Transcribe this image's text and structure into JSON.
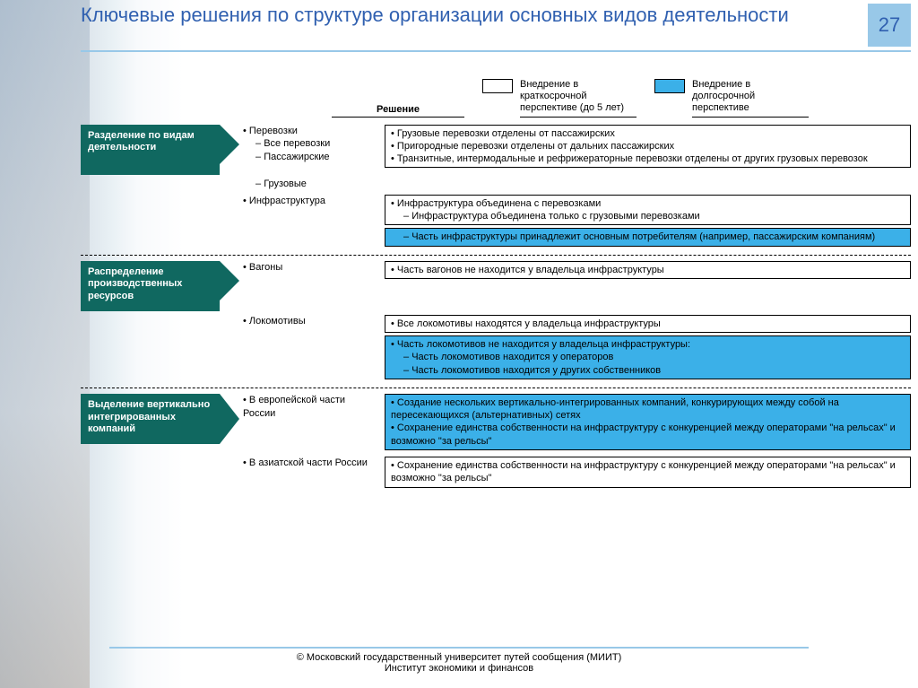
{
  "page_number": "27",
  "title": "Ключевые решения по структуре организации основных видов деятельности",
  "colors": {
    "title": "#3060b0",
    "accent_bar": "#98c8e8",
    "category_bg": "#106860",
    "long_term_bg": "#3bb0e8",
    "short_term_bg": "#ffffff"
  },
  "legend": {
    "solution_header": "Решение",
    "short_term": "Внедрение в краткосрочной перспективе (до 5 лет)",
    "long_term": "Внедрение в долгосрочной перспективе"
  },
  "sections": [
    {
      "category": "Разделение по видам деятельности",
      "groups": [
        {
          "mid": [
            {
              "text": "Перевозки",
              "type": "b"
            },
            {
              "text": "Все перевозки",
              "type": "d"
            },
            {
              "text": "Пассажирские",
              "type": "d"
            },
            {
              "text": "",
              "type": "gap"
            },
            {
              "text": "Грузовые",
              "type": "d"
            }
          ],
          "boxes": [
            {
              "cls": "short",
              "items": [
                {
                  "text": "Грузовые перевозки отделены от пассажирских",
                  "type": "b"
                },
                {
                  "text": "Пригородные перевозки отделены от дальних пассажирских",
                  "type": "b"
                },
                {
                  "text": "Транзитные, интермодальные и рефрижераторные перевозки отделены от других грузовых перевозок",
                  "type": "b"
                }
              ]
            }
          ]
        },
        {
          "mid": [
            {
              "text": "Инфраструктура",
              "type": "b"
            }
          ],
          "boxes": [
            {
              "cls": "short",
              "items": [
                {
                  "text": "Инфраструктура объединена с перевозками",
                  "type": "b"
                },
                {
                  "text": "Инфраструктура объединена только с грузовыми перевозками",
                  "type": "d"
                }
              ]
            },
            {
              "cls": "long",
              "items": [
                {
                  "text": "Часть инфраструктуры принадлежит основным потребителям (например, пассажирским компаниям)",
                  "type": "d"
                }
              ]
            }
          ]
        }
      ]
    },
    {
      "category": "Распределение производственных ресурсов",
      "groups": [
        {
          "mid": [
            {
              "text": "Вагоны",
              "type": "b"
            }
          ],
          "boxes": [
            {
              "cls": "short",
              "items": [
                {
                  "text": "Часть вагонов не находится у владельца инфраструктуры",
                  "type": "b"
                }
              ]
            }
          ]
        },
        {
          "mid": [
            {
              "text": "Локомотивы",
              "type": "b"
            }
          ],
          "boxes": [
            {
              "cls": "short",
              "items": [
                {
                  "text": "Все локомотивы находятся у владельца инфраструктуры",
                  "type": "b"
                }
              ]
            },
            {
              "cls": "long",
              "items": [
                {
                  "text": "Часть локомотивов не находится у владельца инфраструктуры:",
                  "type": "b"
                },
                {
                  "text": "Часть локомотивов находится у операторов",
                  "type": "d"
                },
                {
                  "text": "Часть локомотивов находится у других собственников",
                  "type": "d"
                }
              ]
            }
          ]
        }
      ]
    },
    {
      "category": "Выделение вертикально интегрированных компаний",
      "groups": [
        {
          "mid": [
            {
              "text": "В европейской части России",
              "type": "b"
            }
          ],
          "boxes": [
            {
              "cls": "long",
              "items": [
                {
                  "text": "Создание нескольких вертикально-интегрированных компаний, конкурирующих между собой на пересекающихся (альтернативных) сетях",
                  "type": "b"
                },
                {
                  "text": "Сохранение единства собственности на инфраструктуру с конкуренцией между операторами \"на рельсах\" и возможно \"за рельсы\"",
                  "type": "b"
                }
              ]
            }
          ]
        },
        {
          "mid": [
            {
              "text": "В азиатской части России",
              "type": "b"
            }
          ],
          "boxes": [
            {
              "cls": "short",
              "items": [
                {
                  "text": "Сохранение единства собственности на инфраструктуру с конкуренцией между операторами \"на рельсах\" и возможно \"за рельсы\"",
                  "type": "b"
                }
              ]
            }
          ]
        }
      ]
    }
  ],
  "footer": {
    "line1": "© Московский государственный университет путей сообщения (МИИТ)",
    "line2": "Институт экономики и финансов"
  }
}
